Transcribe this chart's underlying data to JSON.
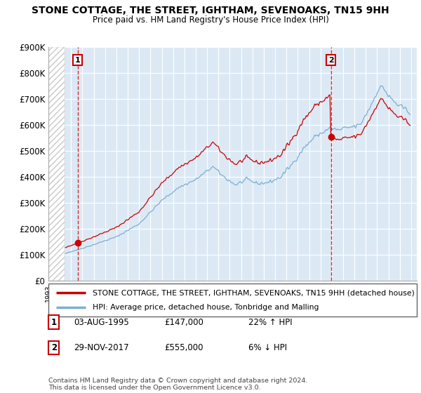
{
  "title": "STONE COTTAGE, THE STREET, IGHTHAM, SEVENOAKS, TN15 9HH",
  "subtitle": "Price paid vs. HM Land Registry's House Price Index (HPI)",
  "ylim": [
    0,
    900000
  ],
  "yticks": [
    0,
    100000,
    200000,
    300000,
    400000,
    500000,
    600000,
    700000,
    800000,
    900000
  ],
  "ytick_labels": [
    "£0",
    "£100K",
    "£200K",
    "£300K",
    "£400K",
    "£500K",
    "£600K",
    "£700K",
    "£800K",
    "£900K"
  ],
  "sale1_year": 1995.583,
  "sale1_price": 147000,
  "sale1_label": "1",
  "sale1_date": "03-AUG-1995",
  "sale1_hpi_pct": "22% ↑ HPI",
  "sale2_year": 2017.917,
  "sale2_price": 555000,
  "sale2_label": "2",
  "sale2_date": "29-NOV-2017",
  "sale2_hpi_pct": "6% ↓ HPI",
  "legend_line1": "STONE COTTAGE, THE STREET, IGHTHAM, SEVENOAKS, TN15 9HH (detached house)",
  "legend_line2": "HPI: Average price, detached house, Tonbridge and Malling",
  "footer": "Contains HM Land Registry data © Crown copyright and database right 2024.\nThis data is licensed under the Open Government Licence v3.0.",
  "sale_color": "#cc0000",
  "hpi_color": "#7bafd4",
  "bg_color": "#dce9f5",
  "grid_color": "#ffffff",
  "hatch_color": "#c8c8c8"
}
